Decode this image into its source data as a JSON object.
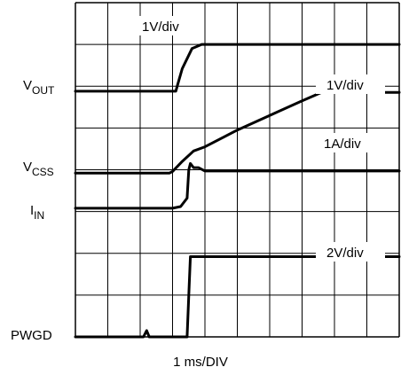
{
  "chart_data": {
    "type": "line",
    "title": "",
    "xlabel": "1 ms/DIV",
    "ylabel": "",
    "grid": true,
    "x_divisions": 10,
    "y_divisions": 8,
    "xlim": [
      0,
      10
    ],
    "ylim": [
      0,
      8
    ],
    "series": [
      {
        "name": "VOUT",
        "label_main": "V",
        "label_sub": "OUT",
        "scale": "1V/div",
        "points": [
          [
            0.0,
            5.88
          ],
          [
            3.1,
            5.88
          ],
          [
            3.15,
            6.02
          ],
          [
            3.3,
            6.42
          ],
          [
            3.6,
            6.9
          ],
          [
            3.9,
            7.0
          ],
          [
            10.0,
            7.0
          ]
        ]
      },
      {
        "name": "VCSS",
        "label_main": "V",
        "label_sub": "CSS",
        "scale": "1V/div",
        "points": [
          [
            0.0,
            3.92
          ],
          [
            2.9,
            3.92
          ],
          [
            3.0,
            3.96
          ],
          [
            3.3,
            4.2
          ],
          [
            3.65,
            4.45
          ],
          [
            4.0,
            4.55
          ],
          [
            5.0,
            4.95
          ],
          [
            6.0,
            5.3
          ],
          [
            7.0,
            5.65
          ],
          [
            7.6,
            5.85
          ],
          [
            10.0,
            5.85
          ]
        ]
      },
      {
        "name": "IN",
        "label_main": "I",
        "label_sub": "IN",
        "scale": "1A/div",
        "points": [
          [
            0.0,
            3.08
          ],
          [
            3.0,
            3.08
          ],
          [
            3.25,
            3.12
          ],
          [
            3.45,
            3.32
          ],
          [
            3.5,
            4.0
          ],
          [
            3.55,
            4.15
          ],
          [
            3.65,
            4.05
          ],
          [
            3.8,
            4.05
          ],
          [
            4.0,
            3.97
          ],
          [
            10.0,
            3.97
          ]
        ]
      },
      {
        "name": "PWGD",
        "label_main": "PWGD",
        "label_sub": "",
        "scale": "2V/div",
        "points": [
          [
            0.0,
            0.0
          ],
          [
            2.1,
            0.0
          ],
          [
            2.2,
            0.15
          ],
          [
            2.28,
            0.0
          ],
          [
            3.45,
            0.0
          ],
          [
            3.5,
            1.0
          ],
          [
            3.55,
            1.92
          ],
          [
            10.0,
            1.92
          ]
        ]
      }
    ]
  }
}
